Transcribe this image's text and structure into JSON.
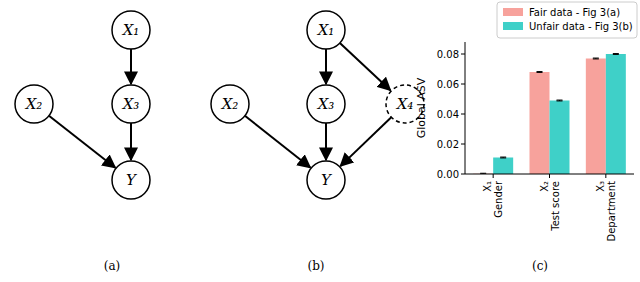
{
  "captions": [
    "(a)",
    "(b)",
    "(c)"
  ],
  "diagrams": [
    {
      "nodes": [
        {
          "label": "X₁"
        },
        {
          "label": "X₂"
        },
        {
          "label": "X₃"
        },
        {
          "label": "Y"
        }
      ],
      "edges": [
        [
          0,
          2
        ],
        [
          2,
          3
        ],
        [
          1,
          3
        ]
      ]
    },
    {
      "nodes": [
        {
          "label": "X₁"
        },
        {
          "label": "X₂"
        },
        {
          "label": "X₃"
        },
        {
          "label": "X₄",
          "line_style": "dashed"
        },
        {
          "label": "Y"
        }
      ],
      "edges": [
        [
          0,
          2
        ],
        [
          0,
          3
        ],
        [
          2,
          4
        ],
        [
          1,
          4
        ],
        [
          3,
          4
        ]
      ]
    }
  ],
  "chart_data": {
    "type": "bar",
    "categories": [
      "X₁\nGender",
      "X₂\nTest score",
      "X₃\nDepartment"
    ],
    "series": [
      {
        "name": "Fair data - Fig 3(a)",
        "color": "#f7a29c",
        "values": [
          0.0002,
          0.068,
          0.077
        ],
        "errors": [
          0.0003,
          0.0003,
          0.0003
        ]
      },
      {
        "name": "Unfair data - Fig 3(b)",
        "color": "#3fd0c8",
        "values": [
          0.011,
          0.049,
          0.08
        ],
        "errors": [
          0.0003,
          0.0003,
          0.0003
        ]
      }
    ],
    "y_label": "Global ASV",
    "ylim": [
      0,
      0.088
    ],
    "yticks": [
      {
        "value": 0,
        "label": "0.00"
      },
      {
        "value": 0.02,
        "label": "0.02"
      },
      {
        "value": 0.04,
        "label": "0.04"
      },
      {
        "value": 0.06,
        "label": "0.06"
      },
      {
        "value": 0.08,
        "label": "0.08"
      }
    ],
    "legend": "upper-right"
  }
}
